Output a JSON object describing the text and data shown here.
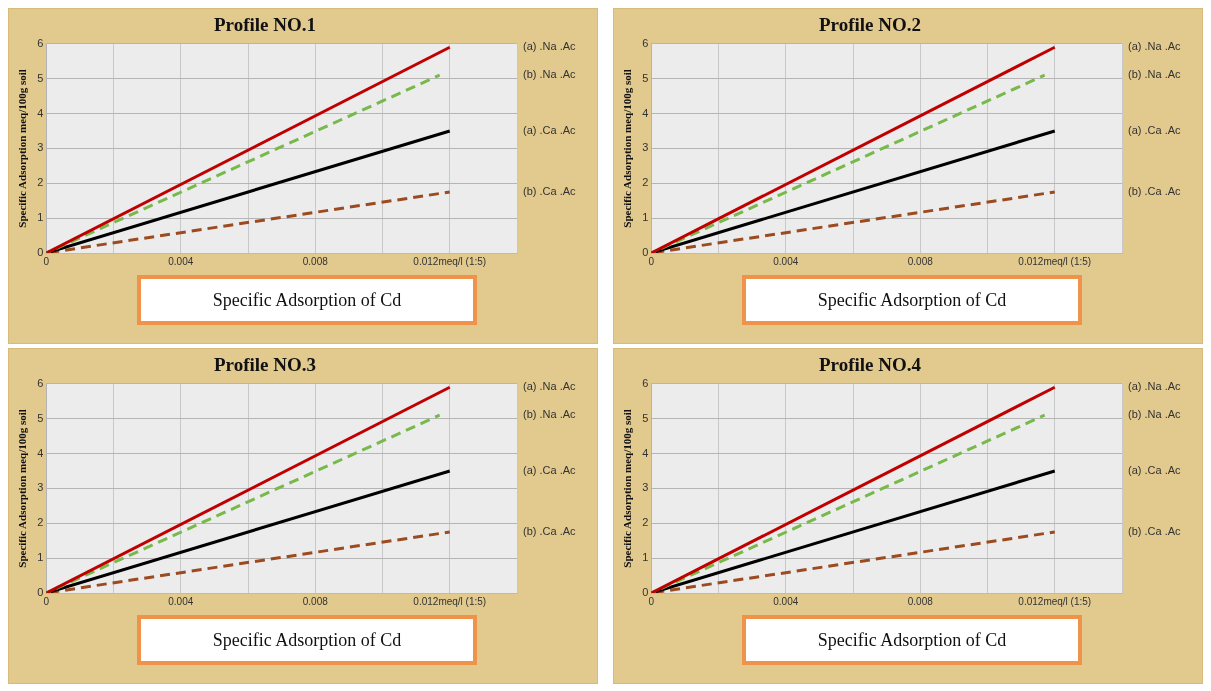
{
  "chart_data": [
    {
      "type": "line",
      "title": "Profile NO.1",
      "xlabel": "Specific Adsorption of Cd",
      "ylabel": "Specific Adsorption meq/100g soil",
      "xlim": [
        0,
        0.014
      ],
      "xticks": [
        0,
        {
          "value": 0.002,
          "label": null
        },
        0.004,
        {
          "value": 0.006,
          "label": null
        },
        0.008,
        {
          "value": 0.01,
          "label": null
        },
        {
          "value": 0.012,
          "label": "0.012meq/l (1:5)"
        },
        {
          "value": 0.014,
          "label": null
        }
      ],
      "ylim": [
        0,
        6
      ],
      "yticks": [
        0,
        1,
        2,
        3,
        4,
        5,
        6
      ],
      "grid": true,
      "series": [
        {
          "name": "(a) .Na .Ac",
          "color": "#c00000",
          "line_style": "solid",
          "x": [
            0,
            0.012
          ],
          "values": [
            0,
            5.9
          ]
        },
        {
          "name": "(b) .Na .Ac",
          "color": "#77b94a",
          "line_style": "dashed",
          "x": [
            0,
            0.0117
          ],
          "values": [
            0,
            5.1
          ]
        },
        {
          "name": "(a) .Ca .Ac",
          "color": "#000000",
          "line_style": "solid",
          "x": [
            0,
            0.012
          ],
          "values": [
            0,
            3.5
          ]
        },
        {
          "name": "(b) .Ca .Ac",
          "color": "#9c4a1f",
          "line_style": "dashed",
          "x": [
            0,
            0.012
          ],
          "values": [
            0,
            1.75
          ]
        }
      ]
    },
    {
      "type": "line",
      "title": "Profile NO.2",
      "xlabel": "Specific Adsorption of Cd",
      "ylabel": "Specific Adsorption meq/100g soil",
      "xlim": [
        0,
        0.014
      ],
      "xticks": [
        0,
        {
          "value": 0.002,
          "label": null
        },
        0.004,
        {
          "value": 0.006,
          "label": null
        },
        0.008,
        {
          "value": 0.01,
          "label": null
        },
        {
          "value": 0.012,
          "label": "0.012meq/l (1:5)"
        },
        {
          "value": 0.014,
          "label": null
        }
      ],
      "ylim": [
        0,
        6
      ],
      "yticks": [
        0,
        1,
        2,
        3,
        4,
        5,
        6
      ],
      "grid": true,
      "series": [
        {
          "name": "(a) .Na .Ac",
          "color": "#c00000",
          "line_style": "solid",
          "x": [
            0,
            0.012
          ],
          "values": [
            0,
            5.9
          ]
        },
        {
          "name": "(b) .Na .Ac",
          "color": "#77b94a",
          "line_style": "dashed",
          "x": [
            0,
            0.0117
          ],
          "values": [
            0,
            5.1
          ]
        },
        {
          "name": "(a) .Ca .Ac",
          "color": "#000000",
          "line_style": "solid",
          "x": [
            0,
            0.012
          ],
          "values": [
            0,
            3.5
          ]
        },
        {
          "name": "(b) .Ca .Ac",
          "color": "#9c4a1f",
          "line_style": "dashed",
          "x": [
            0,
            0.012
          ],
          "values": [
            0,
            1.75
          ]
        }
      ]
    },
    {
      "type": "line",
      "title": "Profile NO.3",
      "xlabel": "Specific Adsorption of Cd",
      "ylabel": "Specific Adsorption meq/100g soil",
      "xlim": [
        0,
        0.014
      ],
      "xticks": [
        0,
        {
          "value": 0.002,
          "label": null
        },
        0.004,
        {
          "value": 0.006,
          "label": null
        },
        0.008,
        {
          "value": 0.01,
          "label": null
        },
        {
          "value": 0.012,
          "label": "0.012meq/l (1:5)"
        },
        {
          "value": 0.014,
          "label": null
        }
      ],
      "ylim": [
        0,
        6
      ],
      "yticks": [
        0,
        1,
        2,
        3,
        4,
        5,
        6
      ],
      "grid": true,
      "series": [
        {
          "name": "(a) .Na .Ac",
          "color": "#c00000",
          "line_style": "solid",
          "x": [
            0,
            0.012
          ],
          "values": [
            0,
            5.9
          ]
        },
        {
          "name": "(b) .Na .Ac",
          "color": "#77b94a",
          "line_style": "dashed",
          "x": [
            0,
            0.0117
          ],
          "values": [
            0,
            5.1
          ]
        },
        {
          "name": "(a) .Ca .Ac",
          "color": "#000000",
          "line_style": "solid",
          "x": [
            0,
            0.012
          ],
          "values": [
            0,
            3.5
          ]
        },
        {
          "name": "(b) .Ca .Ac",
          "color": "#9c4a1f",
          "line_style": "dashed",
          "x": [
            0,
            0.012
          ],
          "values": [
            0,
            1.75
          ]
        }
      ]
    },
    {
      "type": "line",
      "title": "Profile NO.4",
      "xlabel": "Specific Adsorption of Cd",
      "ylabel": "Specific Adsorption meq/100g soil",
      "xlim": [
        0,
        0.014
      ],
      "xticks": [
        0,
        {
          "value": 0.002,
          "label": null
        },
        0.004,
        {
          "value": 0.006,
          "label": null
        },
        0.008,
        {
          "value": 0.01,
          "label": null
        },
        {
          "value": 0.012,
          "label": "0.012meq/l (1:5)"
        },
        {
          "value": 0.014,
          "label": null
        }
      ],
      "ylim": [
        0,
        6
      ],
      "yticks": [
        0,
        1,
        2,
        3,
        4,
        5,
        6
      ],
      "grid": true,
      "series": [
        {
          "name": "(a) .Na .Ac",
          "color": "#c00000",
          "line_style": "solid",
          "x": [
            0,
            0.012
          ],
          "values": [
            0,
            5.9
          ]
        },
        {
          "name": "(b) .Na .Ac",
          "color": "#77b94a",
          "line_style": "dashed",
          "x": [
            0,
            0.0117
          ],
          "values": [
            0,
            5.1
          ]
        },
        {
          "name": "(a) .Ca .Ac",
          "color": "#000000",
          "line_style": "solid",
          "x": [
            0,
            0.012
          ],
          "values": [
            0,
            3.5
          ]
        },
        {
          "name": "(b) .Ca .Ac",
          "color": "#9c4a1f",
          "line_style": "dashed",
          "x": [
            0,
            0.012
          ],
          "values": [
            0,
            1.75
          ]
        }
      ]
    }
  ]
}
